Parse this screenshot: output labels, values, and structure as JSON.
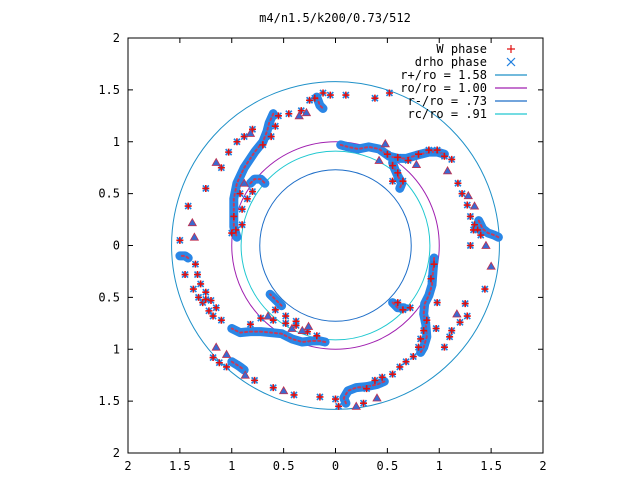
{
  "chart_data": {
    "type": "scatter",
    "title": "m4/n1.5/k200/0.73/512",
    "xlim": [
      -2,
      2
    ],
    "ylim": [
      -2,
      2
    ],
    "x_ticks": [
      -2,
      -1.5,
      -1,
      -0.5,
      0,
      0.5,
      1,
      1.5,
      2
    ],
    "y_ticks": [
      -2,
      -1.5,
      -1,
      -0.5,
      0,
      0.5,
      1,
      1.5,
      2
    ],
    "x_tick_labels": [
      "2",
      "1.5",
      "1",
      "0.5",
      "0",
      "0.5",
      "1",
      "1.5",
      "2"
    ],
    "y_tick_labels": [
      "2",
      "1.5",
      "1",
      "0.5",
      "0",
      "0.5",
      "1",
      "1.5",
      "2"
    ],
    "grid": false,
    "legend_position": "top-right",
    "circles": [
      {
        "label": "r+/ro = 1.58",
        "radius": 1.58,
        "color": "#1e90c8"
      },
      {
        "label": "ro/ro = 1.00",
        "radius": 1.0,
        "color": "#a020b0"
      },
      {
        "label": "r-/ro = .73",
        "radius": 0.73,
        "color": "#1e6ec8"
      },
      {
        "label": "rc/ro = .91",
        "radius": 0.91,
        "color": "#20c8d0"
      }
    ],
    "series": [
      {
        "name": "W phase",
        "marker": "+",
        "color": "#e01010"
      },
      {
        "name": "drho phase",
        "marker": "x",
        "color": "#2080e0"
      }
    ],
    "dense_bands": [
      [
        [
          -0.6,
          1.27
        ],
        [
          -0.64,
          1.18
        ],
        [
          -0.66,
          1.1
        ],
        [
          -0.7,
          1.0
        ],
        [
          -0.78,
          0.9
        ],
        [
          -0.88,
          0.75
        ],
        [
          -0.95,
          0.6
        ],
        [
          -0.98,
          0.45
        ],
        [
          -0.98,
          0.32
        ],
        [
          -0.98,
          0.18
        ],
        [
          -0.95,
          0.08
        ]
      ],
      [
        [
          -0.82,
          0.6
        ],
        [
          -0.78,
          0.64
        ],
        [
          -0.72,
          0.64
        ],
        [
          -0.68,
          0.6
        ]
      ],
      [
        [
          -0.18,
          1.43
        ],
        [
          -0.15,
          1.35
        ],
        [
          -0.12,
          1.32
        ]
      ],
      [
        [
          0.05,
          0.97
        ],
        [
          0.12,
          0.95
        ],
        [
          0.22,
          0.93
        ],
        [
          0.32,
          0.95
        ],
        [
          0.42,
          0.93
        ],
        [
          0.52,
          0.86
        ],
        [
          0.6,
          0.84
        ],
        [
          0.68,
          0.84
        ],
        [
          0.75,
          0.86
        ],
        [
          0.82,
          0.88
        ],
        [
          0.9,
          0.9
        ],
        [
          0.98,
          0.9
        ],
        [
          1.05,
          0.88
        ]
      ],
      [
        [
          0.55,
          0.8
        ],
        [
          0.57,
          0.74
        ],
        [
          0.6,
          0.67
        ],
        [
          0.64,
          0.6
        ],
        [
          0.62,
          0.55
        ]
      ],
      [
        [
          1.38,
          0.24
        ],
        [
          1.42,
          0.16
        ],
        [
          1.47,
          0.12
        ],
        [
          1.53,
          0.1
        ],
        [
          1.57,
          0.08
        ]
      ],
      [
        [
          0.95,
          -0.12
        ],
        [
          0.94,
          -0.25
        ],
        [
          0.93,
          -0.38
        ],
        [
          0.9,
          -0.48
        ],
        [
          0.86,
          -0.56
        ],
        [
          0.85,
          -0.66
        ],
        [
          0.87,
          -0.76
        ],
        [
          0.88,
          -0.88
        ],
        [
          0.85,
          -0.98
        ],
        [
          0.82,
          -1.03
        ]
      ],
      [
        [
          0.55,
          -0.55
        ],
        [
          0.6,
          -0.6
        ],
        [
          0.66,
          -0.6
        ]
      ],
      [
        [
          0.47,
          -1.31
        ],
        [
          0.4,
          -1.34
        ],
        [
          0.3,
          -1.36
        ],
        [
          0.2,
          -1.37
        ],
        [
          0.12,
          -1.4
        ],
        [
          0.08,
          -1.47
        ],
        [
          0.1,
          -1.52
        ]
      ],
      [
        [
          -0.1,
          -0.93
        ],
        [
          -0.15,
          -0.92
        ],
        [
          -0.22,
          -0.92
        ],
        [
          -0.32,
          -0.93
        ],
        [
          -0.42,
          -0.9
        ],
        [
          -0.52,
          -0.85
        ],
        [
          -0.62,
          -0.84
        ],
        [
          -0.72,
          -0.83
        ],
        [
          -0.82,
          -0.83
        ],
        [
          -0.92,
          -0.84
        ],
        [
          -1.0,
          -0.8
        ]
      ],
      [
        [
          -0.52,
          -0.58
        ],
        [
          -0.58,
          -0.52
        ],
        [
          -0.63,
          -0.47
        ]
      ],
      [
        [
          -1.42,
          -0.12
        ],
        [
          -1.45,
          -0.1
        ],
        [
          -1.5,
          -0.1
        ]
      ],
      [
        [
          -1.0,
          -1.12
        ],
        [
          -0.95,
          -1.15
        ],
        [
          -0.92,
          -1.17
        ],
        [
          -0.88,
          -1.2
        ]
      ]
    ],
    "red_points": [
      [
        -0.8,
        1.12
      ],
      [
        -0.88,
        1.05
      ],
      [
        -0.95,
        1.0
      ],
      [
        -1.03,
        0.9
      ],
      [
        -1.1,
        0.75
      ],
      [
        -1.25,
        0.55
      ],
      [
        -1.42,
        0.38
      ],
      [
        -1.5,
        0.05
      ],
      [
        -1.45,
        -0.28
      ],
      [
        -1.37,
        -0.42
      ],
      [
        -1.32,
        -0.5
      ],
      [
        -1.28,
        -0.55
      ],
      [
        -1.22,
        -0.63
      ],
      [
        -1.18,
        -0.68
      ],
      [
        -1.1,
        -0.72
      ],
      [
        -1.15,
        -0.6
      ],
      [
        -1.2,
        -0.53
      ],
      [
        -1.25,
        -0.45
      ],
      [
        -1.3,
        -0.37
      ],
      [
        -1.33,
        -0.28
      ],
      [
        -1.35,
        -0.18
      ],
      [
        -1.25,
        -0.52
      ],
      [
        -0.82,
        -0.76
      ],
      [
        -0.72,
        -0.7
      ],
      [
        -0.6,
        -0.72
      ],
      [
        -0.48,
        -0.75
      ],
      [
        -0.38,
        -0.77
      ],
      [
        -0.27,
        -0.83
      ],
      [
        -0.18,
        -0.87
      ],
      [
        -0.58,
        -0.62
      ],
      [
        -0.48,
        -0.68
      ],
      [
        -0.38,
        -0.73
      ],
      [
        -1.18,
        -1.08
      ],
      [
        -1.12,
        -1.13
      ],
      [
        -1.05,
        -1.17
      ],
      [
        -0.78,
        -1.3
      ],
      [
        -0.6,
        -1.37
      ],
      [
        -0.4,
        -1.44
      ],
      [
        -0.15,
        -1.46
      ],
      [
        0.0,
        -1.48
      ],
      [
        0.03,
        -1.55
      ],
      [
        0.27,
        -1.52
      ],
      [
        0.3,
        -1.38
      ],
      [
        0.38,
        -1.3
      ],
      [
        0.45,
        -1.27
      ],
      [
        0.55,
        -1.24
      ],
      [
        0.62,
        -1.17
      ],
      [
        0.68,
        -1.12
      ],
      [
        0.75,
        -1.07
      ],
      [
        0.8,
        -0.98
      ],
      [
        0.82,
        -0.9
      ],
      [
        0.85,
        -0.82
      ],
      [
        0.88,
        -0.72
      ],
      [
        1.05,
        -0.98
      ],
      [
        1.1,
        -0.88
      ],
      [
        1.12,
        -0.82
      ],
      [
        1.2,
        -0.74
      ],
      [
        1.27,
        -0.68
      ],
      [
        1.25,
        -0.56
      ],
      [
        1.44,
        -0.42
      ],
      [
        0.97,
        -0.8
      ],
      [
        0.98,
        -0.55
      ],
      [
        0.92,
        -0.32
      ],
      [
        0.95,
        -0.18
      ],
      [
        0.6,
        -0.55
      ],
      [
        0.65,
        -0.62
      ],
      [
        0.72,
        -0.6
      ],
      [
        1.22,
        0.5
      ],
      [
        1.27,
        0.39
      ],
      [
        1.3,
        0.28
      ],
      [
        1.34,
        0.2
      ],
      [
        1.37,
        0.15
      ],
      [
        1.4,
        0.1
      ],
      [
        1.33,
        0.15
      ],
      [
        1.3,
        0.0
      ],
      [
        1.18,
        0.6
      ],
      [
        1.12,
        0.83
      ],
      [
        1.05,
        0.86
      ],
      [
        0.98,
        0.92
      ],
      [
        0.9,
        0.92
      ],
      [
        0.8,
        0.88
      ],
      [
        0.7,
        0.82
      ],
      [
        0.6,
        0.85
      ],
      [
        0.5,
        0.88
      ],
      [
        0.55,
        0.77
      ],
      [
        0.6,
        0.7
      ],
      [
        0.65,
        0.62
      ],
      [
        0.55,
        0.62
      ],
      [
        0.52,
        1.47
      ],
      [
        0.38,
        1.42
      ],
      [
        0.1,
        1.45
      ],
      [
        -0.05,
        1.45
      ],
      [
        -0.12,
        1.47
      ],
      [
        -0.2,
        1.42
      ],
      [
        -0.25,
        1.4
      ],
      [
        -0.33,
        1.3
      ],
      [
        -0.45,
        1.27
      ],
      [
        -0.55,
        1.25
      ],
      [
        -0.58,
        1.15
      ],
      [
        -0.62,
        1.05
      ],
      [
        -0.7,
        0.97
      ],
      [
        -0.9,
        0.35
      ],
      [
        -0.85,
        0.45
      ],
      [
        -0.8,
        0.52
      ],
      [
        -0.92,
        0.5
      ],
      [
        -0.9,
        0.2
      ],
      [
        -0.96,
        0.15
      ],
      [
        -1.0,
        0.12
      ],
      [
        -0.98,
        0.28
      ]
    ],
    "blue_points": [
      [
        -1.15,
        -0.98
      ],
      [
        -1.05,
        -1.05
      ],
      [
        -0.87,
        -1.25
      ],
      [
        -0.5,
        -1.4
      ],
      [
        0.2,
        -1.55
      ],
      [
        0.4,
        -1.47
      ],
      [
        -0.42,
        -0.8
      ],
      [
        -0.32,
        -0.82
      ],
      [
        -0.26,
        -0.78
      ],
      [
        -0.65,
        -0.68
      ],
      [
        1.17,
        -0.66
      ],
      [
        1.5,
        -0.2
      ],
      [
        1.45,
        0.0
      ],
      [
        1.34,
        0.38
      ],
      [
        1.28,
        0.48
      ],
      [
        0.48,
        0.98
      ],
      [
        0.42,
        0.82
      ],
      [
        0.78,
        0.78
      ],
      [
        1.08,
        0.72
      ],
      [
        -0.35,
        1.25
      ],
      [
        -0.28,
        1.28
      ],
      [
        -0.82,
        1.08
      ],
      [
        -1.15,
        0.8
      ],
      [
        -1.38,
        0.22
      ],
      [
        -1.36,
        0.08
      ],
      [
        -0.88,
        0.6
      ]
    ]
  }
}
